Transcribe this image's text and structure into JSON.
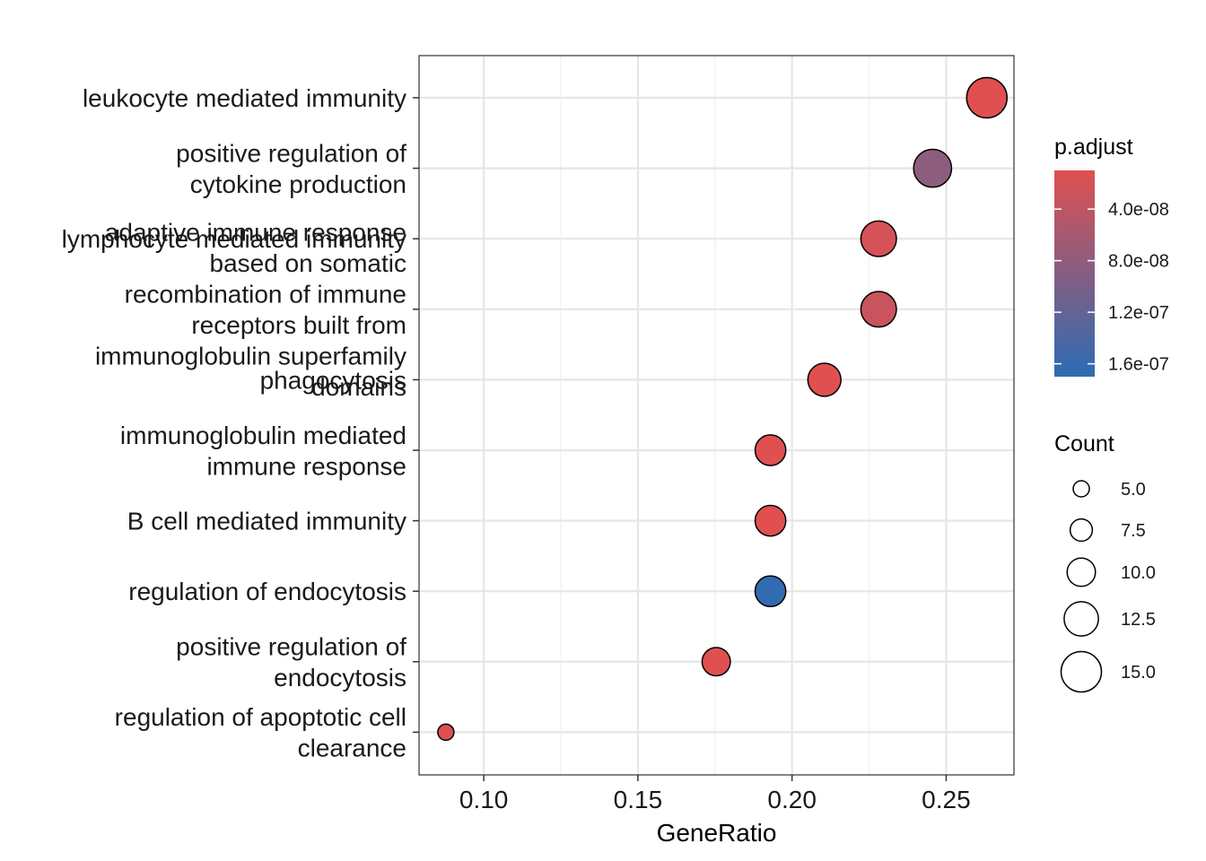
{
  "chart_data": {
    "type": "scatter",
    "xlabel": "GeneRatio",
    "xlim": [
      0.079,
      0.272
    ],
    "x_ticks": [
      {
        "value": 0.1,
        "label": "0.10"
      },
      {
        "value": 0.15,
        "label": "0.15"
      },
      {
        "value": 0.2,
        "label": "0.20"
      },
      {
        "value": 0.25,
        "label": "0.25"
      }
    ],
    "grid": true,
    "legend_position": "right",
    "categories": [
      {
        "lines": [
          "leukocyte mediated immunity"
        ]
      },
      {
        "lines": [
          "positive regulation of",
          "cytokine production"
        ]
      },
      {
        "lines": [
          "lymphocyte mediated immunity"
        ]
      },
      {
        "lines": [
          "adaptive immune response",
          "based on somatic",
          "recombination of immune",
          "receptors built from",
          "immunoglobulin superfamily",
          "domains"
        ]
      },
      {
        "lines": [
          "phagocytosis"
        ]
      },
      {
        "lines": [
          "immunoglobulin mediated",
          "immune response"
        ]
      },
      {
        "lines": [
          "B cell mediated immunity"
        ]
      },
      {
        "lines": [
          "regulation of endocytosis"
        ]
      },
      {
        "lines": [
          "positive regulation of",
          "endocytosis"
        ]
      },
      {
        "lines": [
          "regulation of apoptotic cell",
          "clearance"
        ]
      }
    ],
    "points": [
      {
        "y": 0,
        "x": 0.2632,
        "count": 15,
        "p_adjust": 1e-08
      },
      {
        "y": 1,
        "x": 0.2456,
        "count": 14,
        "p_adjust": 8.3e-08
      },
      {
        "y": 2,
        "x": 0.2281,
        "count": 13,
        "p_adjust": 2e-08
      },
      {
        "y": 3,
        "x": 0.2281,
        "count": 13,
        "p_adjust": 3e-08
      },
      {
        "y": 4,
        "x": 0.2105,
        "count": 12,
        "p_adjust": 1e-08
      },
      {
        "y": 5,
        "x": 0.193,
        "count": 11,
        "p_adjust": 1e-08
      },
      {
        "y": 6,
        "x": 0.193,
        "count": 11,
        "p_adjust": 1e-08
      },
      {
        "y": 7,
        "x": 0.193,
        "count": 11,
        "p_adjust": 1.65e-07
      },
      {
        "y": 8,
        "x": 0.1754,
        "count": 10,
        "p_adjust": 1e-08
      },
      {
        "y": 9,
        "x": 0.0877,
        "count": 5,
        "p_adjust": 1e-08
      }
    ],
    "color_legend": {
      "title": "p.adjust",
      "range": [
        1e-08,
        1.7e-07
      ],
      "color_low": "#E05050",
      "color_high": "#2B6CB4",
      "ticks": [
        {
          "value": 4e-08,
          "label": "4.0e-08"
        },
        {
          "value": 8e-08,
          "label": "8.0e-08"
        },
        {
          "value": 1.2e-07,
          "label": "1.2e-07"
        },
        {
          "value": 1.6e-07,
          "label": "1.6e-07"
        }
      ]
    },
    "size_legend": {
      "title": "Count",
      "entries": [
        {
          "value": 5,
          "label": "5.0"
        },
        {
          "value": 7.5,
          "label": "7.5"
        },
        {
          "value": 10,
          "label": "10.0"
        },
        {
          "value": 12.5,
          "label": "12.5"
        },
        {
          "value": 15,
          "label": "15.0"
        }
      ]
    }
  }
}
